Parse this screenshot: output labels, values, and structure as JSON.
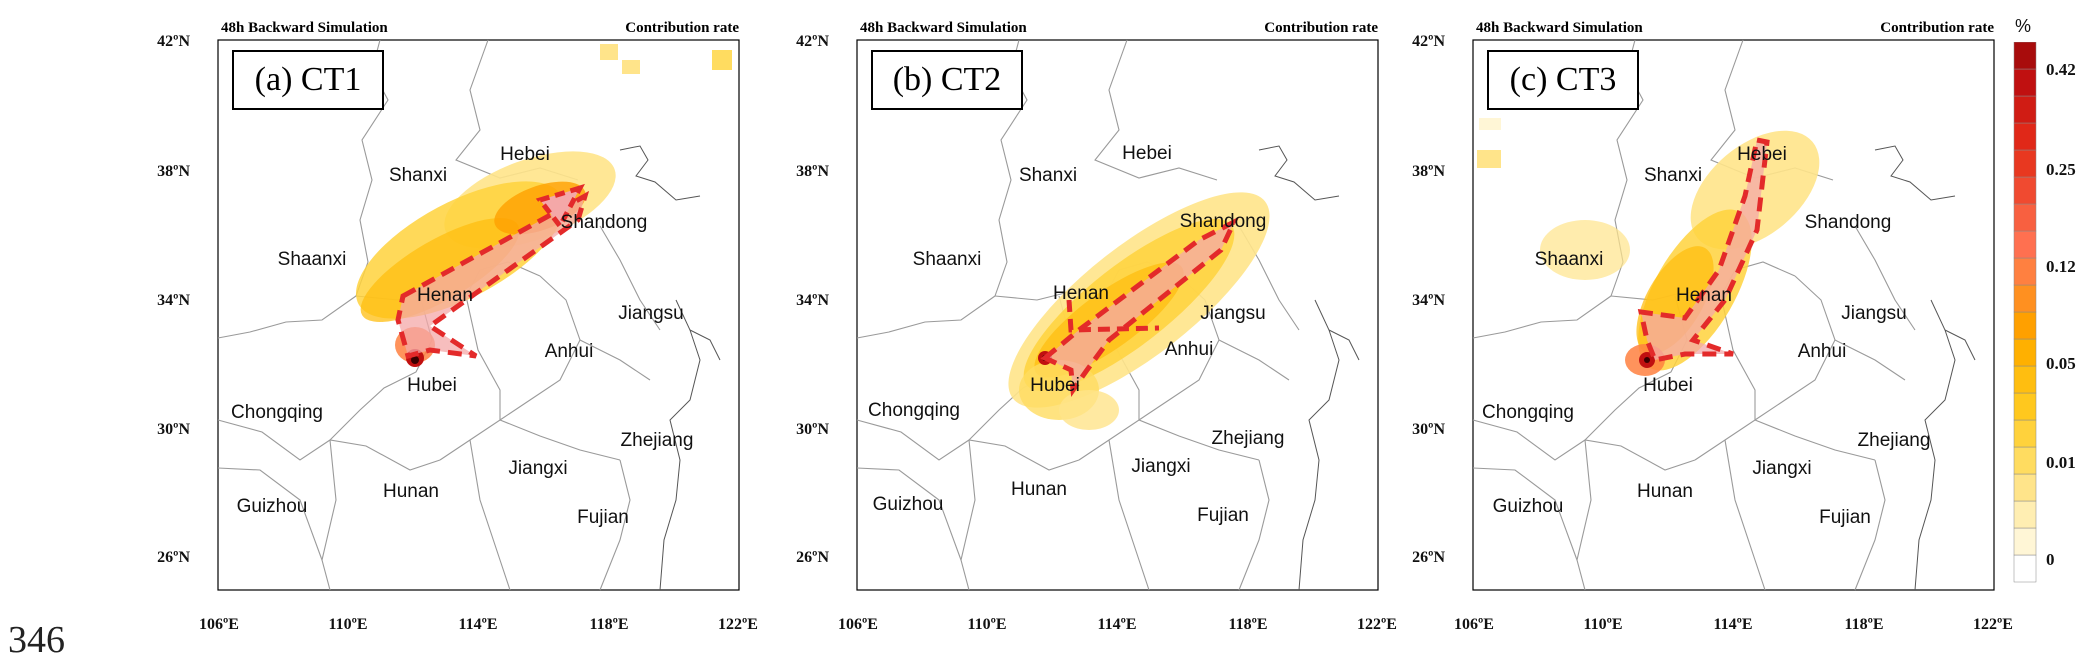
{
  "line_number": "346",
  "header_left": "48h Backward Simulation",
  "header_right": "Contribution rate",
  "lat_labels": [
    "42ºN",
    "38ºN",
    "34ºN",
    "30ºN",
    "26ºN"
  ],
  "lon_labels": [
    "106ºE",
    "110ºE",
    "114ºE",
    "118ºE",
    "122ºE"
  ],
  "colorbar": {
    "unit": "%",
    "labels": [
      "0.42",
      "0.25",
      "0.12",
      "0.05",
      "0.01",
      "0"
    ],
    "colors": [
      "#ffffff",
      "#fff6d6",
      "#ffeeb2",
      "#ffe48a",
      "#ffdc60",
      "#ffd23c",
      "#ffc81e",
      "#ffbe10",
      "#ffb000",
      "#ffa000",
      "#ff9020",
      "#ff8040",
      "#ff7050",
      "#f86040",
      "#f04a30",
      "#e83820",
      "#e02818",
      "#d01c14",
      "#c01010",
      "#a80c0c"
    ]
  },
  "panels": [
    {
      "label": "(a) CT1",
      "provinces": [
        "Hebei",
        "Shanxi",
        "Shandong",
        "Shaanxi",
        "Henan",
        "Jiangsu",
        "Anhui",
        "Hubei",
        "Chongqing",
        "Zhejiang",
        "Jiangxi",
        "Hunan",
        "Guizhou",
        "Fujian"
      ]
    },
    {
      "label": "(b) CT2",
      "provinces": [
        "Hebei",
        "Shanxi",
        "Shandong",
        "Shaanxi",
        "Henan",
        "Jiangsu",
        "Anhui",
        "Hubei",
        "Chongqing",
        "Zhejiang",
        "Jiangxi",
        "Hunan",
        "Guizhou",
        "Fujian"
      ]
    },
    {
      "label": "(c) CT3",
      "provinces": [
        "Hebei",
        "Shanxi",
        "Shandong",
        "Shaanxi",
        "Henan",
        "Jiangsu",
        "Anhui",
        "Hubei",
        "Chongqing",
        "Zhejiang",
        "Jiangxi",
        "Hunan",
        "Guizhou",
        "Fujian"
      ]
    }
  ]
}
